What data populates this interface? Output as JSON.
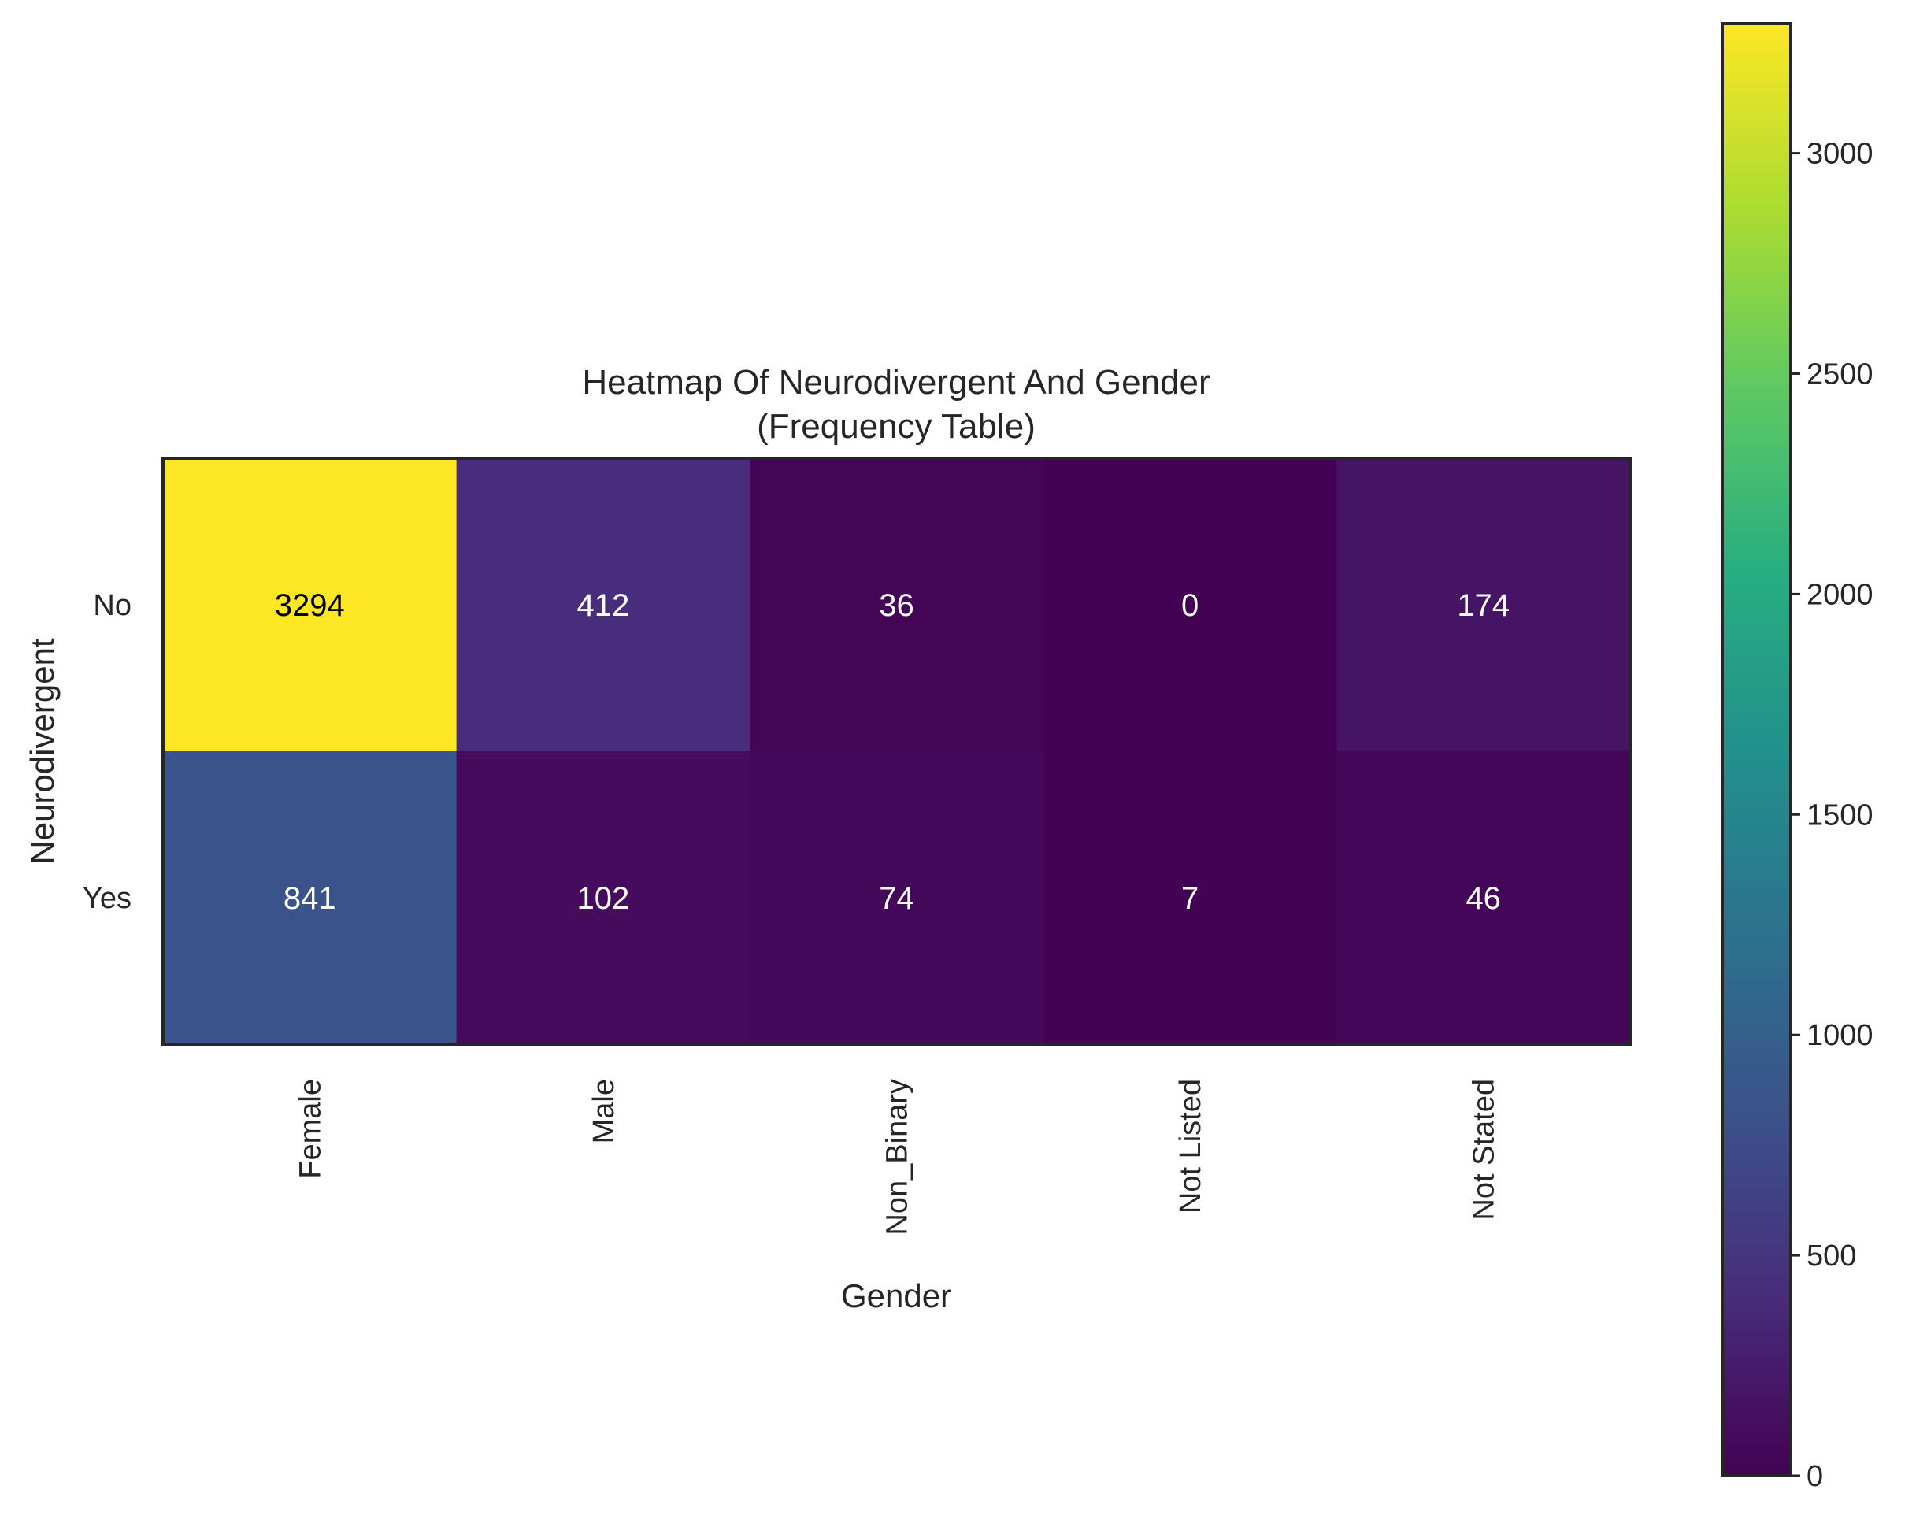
{
  "chart_data": {
    "type": "heatmap",
    "title_line1": "Heatmap Of Neurodivergent And Gender",
    "title_line2": "(Frequency Table)",
    "xlabel": "Gender",
    "ylabel": "Neurodivergent",
    "columns": [
      "Female",
      "Male",
      "Non_Binary",
      "Not Listed",
      "Not Stated"
    ],
    "rows": [
      "No",
      "Yes"
    ],
    "values": [
      [
        3294,
        412,
        36,
        0,
        174
      ],
      [
        841,
        102,
        74,
        7,
        46
      ]
    ],
    "colormap": "viridis",
    "colorbar": {
      "vmin": 0,
      "vmax": 3294,
      "ticks": [
        0,
        500,
        1000,
        1500,
        2000,
        2500,
        3000
      ]
    },
    "annotation_colors": {
      "dark_text": "#000000",
      "light_text": "#ffffff"
    }
  }
}
